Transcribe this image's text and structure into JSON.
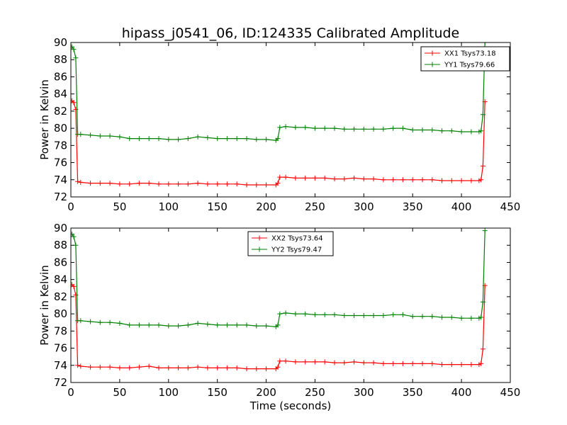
{
  "chart_data": [
    {
      "type": "line",
      "title": "hipass_j0541_06, ID:124335 Calibrated Amplitude",
      "xlabel": "",
      "ylabel": "Power in Kelvin",
      "xlim": [
        0,
        450
      ],
      "ylim": [
        72,
        90
      ],
      "xticks": [
        "0",
        "50",
        "100",
        "150",
        "200",
        "250",
        "300",
        "350",
        "400",
        "450"
      ],
      "yticks": [
        "72",
        "74",
        "76",
        "78",
        "80",
        "82",
        "84",
        "86",
        "88",
        "90"
      ],
      "legend_position": "top-right",
      "marker": "+",
      "series": [
        {
          "name": "XX1 Tsys73.18",
          "color": "#ff0000",
          "x": [
            1,
            3,
            5,
            7,
            10,
            20,
            30,
            40,
            50,
            60,
            70,
            80,
            90,
            100,
            110,
            120,
            130,
            140,
            150,
            160,
            170,
            180,
            190,
            200,
            210,
            212,
            214,
            220,
            230,
            240,
            250,
            260,
            270,
            280,
            290,
            300,
            310,
            320,
            330,
            340,
            350,
            360,
            370,
            380,
            390,
            400,
            410,
            418,
            420,
            422,
            424
          ],
          "y": [
            83.2,
            83.0,
            82.2,
            73.8,
            73.7,
            73.6,
            73.6,
            73.6,
            73.5,
            73.5,
            73.6,
            73.6,
            73.5,
            73.5,
            73.5,
            73.5,
            73.6,
            73.5,
            73.5,
            73.5,
            73.5,
            73.4,
            73.4,
            73.4,
            73.4,
            73.6,
            74.3,
            74.3,
            74.2,
            74.2,
            74.2,
            74.2,
            74.1,
            74.1,
            74.2,
            74.1,
            74.1,
            74.0,
            74.0,
            74.0,
            74.0,
            74.0,
            74.0,
            73.9,
            73.9,
            73.9,
            73.9,
            73.9,
            74.0,
            75.6,
            83.1
          ]
        },
        {
          "name": "YY1 Tsys79.66",
          "color": "#008000",
          "x": [
            1,
            3,
            5,
            7,
            10,
            20,
            30,
            40,
            50,
            60,
            70,
            80,
            90,
            100,
            110,
            120,
            130,
            140,
            150,
            160,
            170,
            180,
            190,
            200,
            210,
            212,
            214,
            220,
            230,
            240,
            250,
            260,
            270,
            280,
            290,
            300,
            310,
            320,
            330,
            340,
            350,
            360,
            370,
            380,
            390,
            400,
            410,
            418,
            420,
            422,
            424
          ],
          "y": [
            89.5,
            89.2,
            88.2,
            79.3,
            79.3,
            79.2,
            79.1,
            79.1,
            79.0,
            78.8,
            78.8,
            78.8,
            78.8,
            78.7,
            78.7,
            78.8,
            79.0,
            78.9,
            78.8,
            78.8,
            78.8,
            78.8,
            78.7,
            78.7,
            78.6,
            78.8,
            80.1,
            80.2,
            80.1,
            80.1,
            80.0,
            80.0,
            80.0,
            79.9,
            79.9,
            79.9,
            79.9,
            79.9,
            80.0,
            80.0,
            79.8,
            79.8,
            79.8,
            79.7,
            79.7,
            79.6,
            79.6,
            79.6,
            79.7,
            81.6,
            90.0
          ]
        }
      ]
    },
    {
      "type": "line",
      "title": "",
      "xlabel": "Time (seconds)",
      "ylabel": "Power in Kelvin",
      "xlim": [
        0,
        450
      ],
      "ylim": [
        72,
        90
      ],
      "xticks": [
        "0",
        "50",
        "100",
        "150",
        "200",
        "250",
        "300",
        "350",
        "400",
        "450"
      ],
      "yticks": [
        "72",
        "74",
        "76",
        "78",
        "80",
        "82",
        "84",
        "86",
        "88",
        "90"
      ],
      "legend_position": "top-center",
      "marker": "+",
      "series": [
        {
          "name": "XX2 Tsys73.64",
          "color": "#ff0000",
          "x": [
            1,
            3,
            5,
            7,
            10,
            20,
            30,
            40,
            50,
            60,
            70,
            80,
            90,
            100,
            110,
            120,
            130,
            140,
            150,
            160,
            170,
            180,
            190,
            200,
            210,
            212,
            214,
            220,
            230,
            240,
            250,
            260,
            270,
            280,
            290,
            300,
            310,
            320,
            330,
            340,
            350,
            360,
            370,
            380,
            390,
            400,
            410,
            418,
            420,
            422,
            424
          ],
          "y": [
            83.4,
            83.2,
            82.2,
            74.0,
            73.9,
            73.8,
            73.8,
            73.8,
            73.7,
            73.7,
            73.8,
            73.9,
            73.7,
            73.7,
            73.7,
            73.7,
            73.8,
            73.7,
            73.7,
            73.7,
            73.7,
            73.6,
            73.6,
            73.6,
            73.6,
            73.8,
            74.5,
            74.5,
            74.4,
            74.4,
            74.4,
            74.4,
            74.3,
            74.3,
            74.4,
            74.3,
            74.3,
            74.2,
            74.2,
            74.2,
            74.2,
            74.2,
            74.2,
            74.1,
            74.1,
            74.1,
            74.1,
            74.1,
            74.2,
            75.9,
            83.3
          ]
        },
        {
          "name": "YY2 Tsys79.47",
          "color": "#008000",
          "x": [
            1,
            3,
            5,
            7,
            10,
            20,
            30,
            40,
            50,
            60,
            70,
            80,
            90,
            100,
            110,
            120,
            130,
            140,
            150,
            160,
            170,
            180,
            190,
            200,
            210,
            212,
            214,
            220,
            230,
            240,
            250,
            260,
            270,
            280,
            290,
            300,
            310,
            320,
            330,
            340,
            350,
            360,
            370,
            380,
            390,
            400,
            410,
            418,
            420,
            422,
            424
          ],
          "y": [
            89.3,
            89.0,
            88.0,
            79.2,
            79.2,
            79.1,
            79.0,
            79.0,
            78.9,
            78.7,
            78.7,
            78.7,
            78.7,
            78.6,
            78.6,
            78.7,
            78.9,
            78.8,
            78.7,
            78.7,
            78.7,
            78.7,
            78.6,
            78.6,
            78.5,
            78.7,
            80.0,
            80.1,
            80.0,
            80.0,
            79.9,
            79.9,
            79.9,
            79.8,
            79.8,
            79.8,
            79.8,
            79.8,
            79.9,
            79.9,
            79.7,
            79.7,
            79.7,
            79.6,
            79.6,
            79.5,
            79.5,
            79.5,
            79.6,
            81.4,
            89.7
          ]
        }
      ]
    }
  ]
}
